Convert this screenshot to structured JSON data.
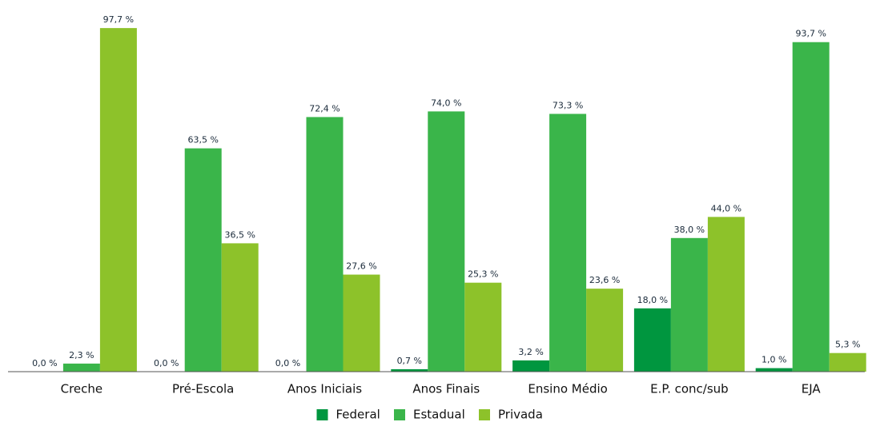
{
  "chart_data": {
    "type": "bar",
    "categories": [
      "Creche",
      "Pré-Escola",
      "Anos Iniciais",
      "Anos Finais",
      "Ensino Médio",
      "E.P. conc/sub",
      "EJA"
    ],
    "series": [
      {
        "name": "Federal",
        "color": "#00963f",
        "values": [
          0.0,
          0.0,
          0.0,
          0.7,
          3.2,
          18.0,
          1.0
        ],
        "value_labels": [
          "0,0 %",
          "0,0 %",
          "0,0 %",
          "0,7 %",
          "3,2 %",
          "18,0 %",
          "1,0 %"
        ]
      },
      {
        "name": "Estadual",
        "color": "#3ab54a",
        "values": [
          2.3,
          63.5,
          72.4,
          74.0,
          73.3,
          38.0,
          93.7
        ],
        "value_labels": [
          "2,3 %",
          "63,5 %",
          "72,4 %",
          "74,0 %",
          "73,3 %",
          "38,0 %",
          "93,7 %"
        ]
      },
      {
        "name": "Privada",
        "color": "#8dc22a",
        "values": [
          97.7,
          36.5,
          27.6,
          25.3,
          23.6,
          44.0,
          5.3
        ],
        "value_labels": [
          "97,7 %",
          "36,5 %",
          "27,6 %",
          "25,3 %",
          "23,6 %",
          "44,0 %",
          "5,3 %"
        ]
      }
    ],
    "legend": "bottom"
  }
}
